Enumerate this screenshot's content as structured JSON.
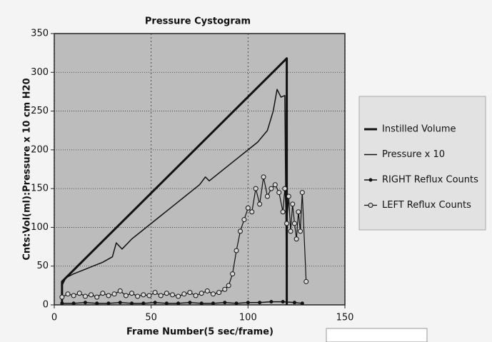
{
  "chart_data": {
    "type": "line",
    "title": "Pressure Cystogram",
    "x_label": "Frame Number(5 sec/frame)",
    "y_label": "Cnts:Vol(ml):Pressure x 10 cm H20",
    "xlim": [
      0,
      150
    ],
    "xticks": [
      0,
      50,
      100,
      150
    ],
    "ylim": [
      0,
      350
    ],
    "yticks": [
      0,
      50,
      100,
      150,
      200,
      250,
      300,
      350
    ],
    "grid": true,
    "legend": "right",
    "series": [
      {
        "name": "Instilled Volume",
        "color": "#111111",
        "line_width": 3,
        "marker": "none",
        "x": [
          4,
          4,
          120,
          120
        ],
        "values": [
          0,
          30,
          318,
          0
        ]
      },
      {
        "name": "Pressure x 10",
        "color": "#111111",
        "line_width": 1.5,
        "marker": "none",
        "x": [
          4,
          6,
          10,
          15,
          20,
          25,
          30,
          32,
          35,
          40,
          45,
          50,
          55,
          60,
          65,
          70,
          75,
          78,
          80,
          85,
          90,
          95,
          100,
          105,
          110,
          113,
          115,
          117,
          119,
          120
        ],
        "values": [
          25,
          35,
          40,
          45,
          50,
          55,
          62,
          80,
          72,
          85,
          95,
          105,
          115,
          125,
          135,
          145,
          155,
          165,
          160,
          170,
          180,
          190,
          200,
          210,
          225,
          250,
          278,
          268,
          270,
          0
        ]
      },
      {
        "name": "RIGHT Reflux Counts",
        "color": "#111111",
        "line_width": 1.5,
        "marker": "filled",
        "x": [
          4,
          10,
          16,
          22,
          28,
          34,
          40,
          46,
          52,
          58,
          64,
          70,
          76,
          82,
          88,
          94,
          100,
          106,
          112,
          118,
          124,
          128
        ],
        "values": [
          2,
          2,
          3,
          2,
          2,
          3,
          2,
          2,
          3,
          2,
          2,
          3,
          2,
          2,
          3,
          2,
          3,
          3,
          4,
          4,
          3,
          2
        ]
      },
      {
        "name": "LEFT Reflux Counts",
        "color": "#111111",
        "line_width": 1.2,
        "marker": "open",
        "x": [
          4,
          7,
          10,
          13,
          16,
          19,
          22,
          25,
          28,
          31,
          34,
          37,
          40,
          43,
          46,
          49,
          52,
          55,
          58,
          61,
          64,
          67,
          70,
          73,
          76,
          79,
          82,
          85,
          88,
          90,
          92,
          94,
          96,
          98,
          100,
          102,
          104,
          106,
          108,
          110,
          112,
          114,
          116,
          118,
          119,
          120,
          121,
          122,
          123,
          124,
          125,
          126,
          127,
          128,
          130
        ],
        "values": [
          10,
          14,
          12,
          15,
          11,
          13,
          10,
          15,
          12,
          14,
          18,
          12,
          15,
          11,
          13,
          12,
          16,
          12,
          15,
          13,
          11,
          14,
          16,
          12,
          15,
          18,
          14,
          16,
          20,
          25,
          40,
          70,
          95,
          110,
          125,
          120,
          150,
          130,
          165,
          140,
          150,
          155,
          145,
          120,
          150,
          105,
          140,
          95,
          130,
          105,
          85,
          120,
          95,
          145,
          30
        ]
      }
    ]
  }
}
